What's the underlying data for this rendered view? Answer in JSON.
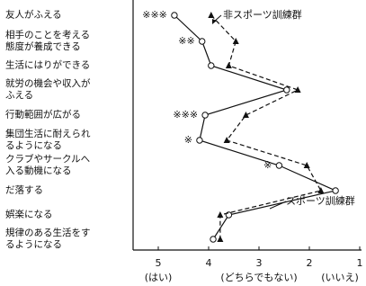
{
  "chart_data": {
    "type": "line",
    "categories": [
      "友人がふえる",
      "相手のことを考える\n態度が養成できる",
      "生活にはりができる",
      "就労の機会や収入が\nふえる",
      "行動範囲が広がる",
      "集団生活に耐えられ\nるようになる",
      "クラブやサークルへ\n入る動機になる",
      "だ落する",
      "娯楽になる",
      "規律のある生活をす\nるようになる"
    ],
    "series": [
      {
        "name": "スポーツ訓練群",
        "color": "#111111",
        "values": [
          4.68,
          4.13,
          3.95,
          2.45,
          4.07,
          4.18,
          2.6,
          1.48,
          3.6,
          3.91
        ]
      },
      {
        "name": "非スポーツ訓練群",
        "color": "#111111",
        "values": [
          3.95,
          3.46,
          3.6,
          2.23,
          3.26,
          3.64,
          2.05,
          1.77,
          3.77,
          3.77
        ]
      }
    ],
    "significance": [
      "※※※",
      "※※",
      null,
      null,
      "※※※",
      "※",
      "※",
      null,
      null,
      null
    ],
    "xlim": [
      5.5,
      1
    ],
    "xticks": [
      5,
      4,
      3,
      2,
      1
    ],
    "scale_labels": [
      "(はい)",
      "(どちらでもない)",
      "(いいえ)"
    ]
  }
}
